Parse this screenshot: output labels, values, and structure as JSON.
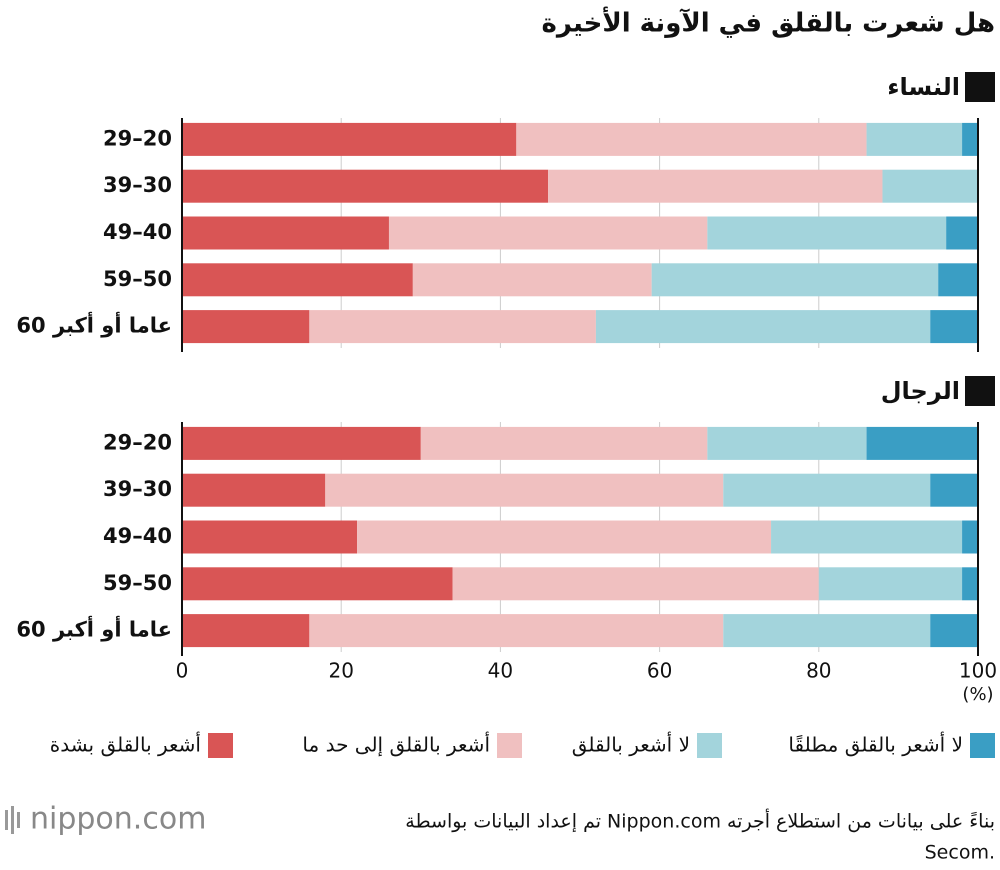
{
  "chart_data": {
    "type": "bar",
    "orientation": "horizontal",
    "stacked": true,
    "title": "هل شعرت بالقلق في الآونة الأخيرة",
    "series": [
      {
        "name": "أشعر بالقلق بشدة",
        "color": "#d95555"
      },
      {
        "name": "أشعر بالقلق إلى حد ما",
        "color": "#f0c0c0"
      },
      {
        "name": "لا أشعر بالقلق",
        "color": "#a3d4dc"
      },
      {
        "name": "لا أشعر بالقلق مطلقًا",
        "color": "#3a9ec4"
      }
    ],
    "panels": [
      {
        "title": "النساء",
        "categories": [
          "29–20",
          "39–30",
          "49–40",
          "59–50",
          "60 عاما أو أكبر"
        ],
        "values": [
          [
            42,
            46,
            26,
            29,
            16
          ],
          [
            44,
            42,
            40,
            30,
            36
          ],
          [
            12,
            12,
            30,
            36,
            42
          ],
          [
            2,
            0,
            4,
            5,
            6
          ]
        ]
      },
      {
        "title": "الرجال",
        "categories": [
          "29–20",
          "39–30",
          "49–40",
          "59–50",
          "60 عاما أو أكبر"
        ],
        "values": [
          [
            30,
            18,
            22,
            34,
            16
          ],
          [
            36,
            50,
            52,
            46,
            52
          ],
          [
            20,
            26,
            24,
            18,
            26
          ],
          [
            14,
            6,
            2,
            2,
            6
          ]
        ]
      }
    ],
    "xlim": [
      0,
      100
    ],
    "xticks": [
      0,
      20,
      40,
      60,
      80,
      100
    ],
    "xlabel": "(%)",
    "grid": true,
    "source": [
      "تم إعداد البيانات بواسطة Nippon.com بناءً على بيانات من استطلاع أجرته",
      "Secom."
    ],
    "logo": "nippon.com"
  }
}
